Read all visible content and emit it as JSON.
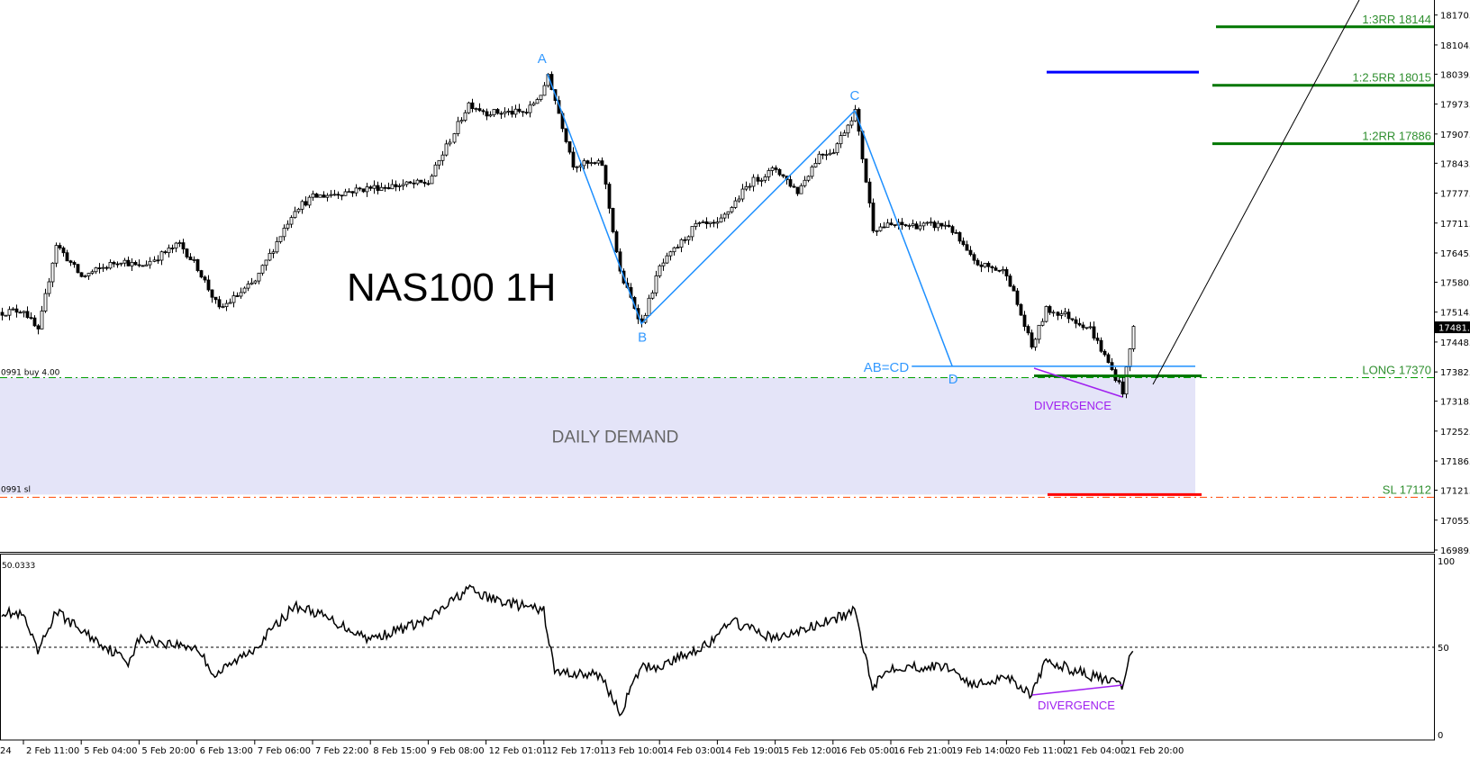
{
  "chart_data": {
    "type": "candlestick",
    "title": "NAS100 1H",
    "instrument": "NAS100",
    "timeframe": "1H",
    "ylim": [
      16989.5,
      18170.0
    ],
    "price_ticks": [
      "18170.0",
      "18104.0",
      "18039.5",
      "17973.5",
      "17907.5",
      "17843.0",
      "17777.0",
      "17711.0",
      "17645.0",
      "17580.5",
      "17514.5",
      "17448.5",
      "17382.5",
      "17318.0",
      "17252.0",
      "17186.0",
      "17121.5",
      "17055.5",
      "16989.5"
    ],
    "current_price": "17481.0",
    "time_partial_label": "24",
    "time_ticks": [
      "2 Feb 11:00",
      "5 Feb 04:00",
      "5 Feb 20:00",
      "6 Feb 13:00",
      "7 Feb 06:00",
      "7 Feb 22:00",
      "8 Feb 15:00",
      "9 Feb 08:00",
      "12 Feb 01:01",
      "12 Feb 17:01",
      "13 Feb 10:00",
      "14 Feb 03:00",
      "14 Feb 19:00",
      "15 Feb 12:00",
      "16 Feb 05:00",
      "16 Feb 21:00",
      "19 Feb 14:00",
      "20 Feb 11:00",
      "21 Feb 04:00",
      "21 Feb 20:00"
    ],
    "price_series_approx": [
      [
        "2 Feb 05:00",
        17514
      ],
      [
        "2 Feb 11:00",
        17520
      ],
      [
        "2 Feb 15:00",
        17470
      ],
      [
        "2 Feb 20:00",
        17665
      ],
      [
        "5 Feb 04:00",
        17592
      ],
      [
        "5 Feb 15:00",
        17630
      ],
      [
        "5 Feb 20:00",
        17613
      ],
      [
        "6 Feb 07:00",
        17665
      ],
      [
        "6 Feb 13:00",
        17613
      ],
      [
        "6 Feb 19:00",
        17520
      ],
      [
        "7 Feb 06:00",
        17582
      ],
      [
        "7 Feb 17:00",
        17743
      ],
      [
        "7 Feb 22:00",
        17768
      ],
      [
        "8 Feb 15:00",
        17789
      ],
      [
        "9 Feb 08:00",
        17800
      ],
      [
        "9 Feb 19:00",
        17975
      ],
      [
        "12 Feb 01:01",
        17955
      ],
      [
        "12 Feb 12:00",
        17955
      ],
      [
        "12 Feb 17:01",
        18007
      ],
      [
        "12 Feb 18:00",
        18040
      ],
      [
        "13 Feb 01:00",
        17841
      ],
      [
        "13 Feb 10:00",
        17841
      ],
      [
        "13 Feb 15:00",
        17600
      ],
      [
        "13 Feb 21:00",
        17489
      ],
      [
        "14 Feb 03:00",
        17613
      ],
      [
        "14 Feb 13:00",
        17706
      ],
      [
        "14 Feb 19:00",
        17706
      ],
      [
        "15 Feb 04:00",
        17800
      ],
      [
        "15 Feb 12:00",
        17831
      ],
      [
        "15 Feb 18:00",
        17780
      ],
      [
        "16 Feb 00:00",
        17862
      ],
      [
        "16 Feb 05:00",
        17872
      ],
      [
        "16 Feb 11:00",
        17959
      ],
      [
        "16 Feb 16:00",
        17700
      ],
      [
        "16 Feb 21:00",
        17706
      ],
      [
        "19 Feb 14:00",
        17706
      ],
      [
        "19 Feb 21:00",
        17623
      ],
      [
        "20 Feb 11:00",
        17602
      ],
      [
        "20 Feb 18:00",
        17437
      ],
      [
        "20 Feb 22:00",
        17520
      ],
      [
        "21 Feb 04:00",
        17509
      ],
      [
        "21 Feb 11:00",
        17478
      ],
      [
        "21 Feb 20:00",
        17340
      ],
      [
        "21 Feb 23:00",
        17481
      ]
    ],
    "oscillator": {
      "value_label": "50.0333",
      "ylim": [
        0,
        100
      ],
      "ticks": [
        "100",
        "50",
        "0"
      ],
      "level": 50,
      "series_approx": [
        [
          "2 Feb 05:00",
          71
        ],
        [
          "2 Feb 11:00",
          68
        ],
        [
          "2 Feb 15:00",
          47
        ],
        [
          "2 Feb 20:00",
          71
        ],
        [
          "5 Feb 04:00",
          60
        ],
        [
          "5 Feb 17:00",
          42
        ],
        [
          "5 Feb 20:00",
          55
        ],
        [
          "6 Feb 13:00",
          50
        ],
        [
          "6 Feb 18:00",
          34
        ],
        [
          "7 Feb 06:00",
          50
        ],
        [
          "7 Feb 17:00",
          74
        ],
        [
          "7 Feb 22:00",
          71
        ],
        [
          "8 Feb 15:00",
          55
        ],
        [
          "9 Feb 08:00",
          66
        ],
        [
          "9 Feb 19:00",
          84
        ],
        [
          "12 Feb 01:01",
          79
        ],
        [
          "12 Feb 17:01",
          71
        ],
        [
          "12 Feb 20:00",
          36
        ],
        [
          "13 Feb 10:00",
          34
        ],
        [
          "13 Feb 15:00",
          12
        ],
        [
          "13 Feb 21:00",
          39
        ],
        [
          "14 Feb 03:00",
          39
        ],
        [
          "14 Feb 19:00",
          55
        ],
        [
          "14 Feb 22:00",
          66
        ],
        [
          "15 Feb 12:00",
          55
        ],
        [
          "16 Feb 05:00",
          66
        ],
        [
          "16 Feb 11:00",
          71
        ],
        [
          "16 Feb 16:00",
          28
        ],
        [
          "16 Feb 21:00",
          39
        ],
        [
          "19 Feb 14:00",
          39
        ],
        [
          "19 Feb 21:00",
          28
        ],
        [
          "20 Feb 11:00",
          34
        ],
        [
          "20 Feb 18:00",
          23
        ],
        [
          "20 Feb 22:00",
          42
        ],
        [
          "21 Feb 04:00",
          39
        ],
        [
          "21 Feb 20:00",
          28
        ],
        [
          "21 Feb 23:00",
          50
        ]
      ],
      "divergence_label": "DIVERGENCE"
    },
    "pattern": {
      "points": [
        {
          "label": "A",
          "time": "12 Feb 18:00",
          "price": 18040
        },
        {
          "label": "B",
          "time": "13 Feb 21:00",
          "price": 17489
        },
        {
          "label": "C",
          "time": "16 Feb 11:00",
          "price": 17959
        },
        {
          "label": "D",
          "time": "19 Feb 15:00",
          "price": 17395
        }
      ],
      "equality_label": "AB=CD",
      "color": "#3399ff"
    },
    "zones": {
      "demand_label": "DAILY DEMAND",
      "demand_top": 17370,
      "demand_bottom": 17112,
      "demand_color": "#e4e4f8"
    },
    "levels": {
      "long": {
        "label": "LONG 17370",
        "price": 17370,
        "color": "#00a000"
      },
      "sl": {
        "label": "SL 17112",
        "price": 17112,
        "color": "#ff4500"
      },
      "rr2": {
        "label": "1:2RR 17886",
        "price": 17886,
        "color": "#007700"
      },
      "rr25": {
        "label": "1:2.5RR 18015",
        "price": 18015,
        "color": "#007700"
      },
      "rr3": {
        "label": "1:3RR 18144",
        "price": 18144,
        "color": "#007700"
      },
      "blue_price": 18044,
      "blue_color": "#0000ff",
      "sl_line_color": "#ff0000",
      "order_buy_label": "0991 buy 4.00",
      "order_sl_label": "0991 sl"
    },
    "price_divergence_label": "DIVERGENCE",
    "divergence_color": "#a020f0"
  }
}
